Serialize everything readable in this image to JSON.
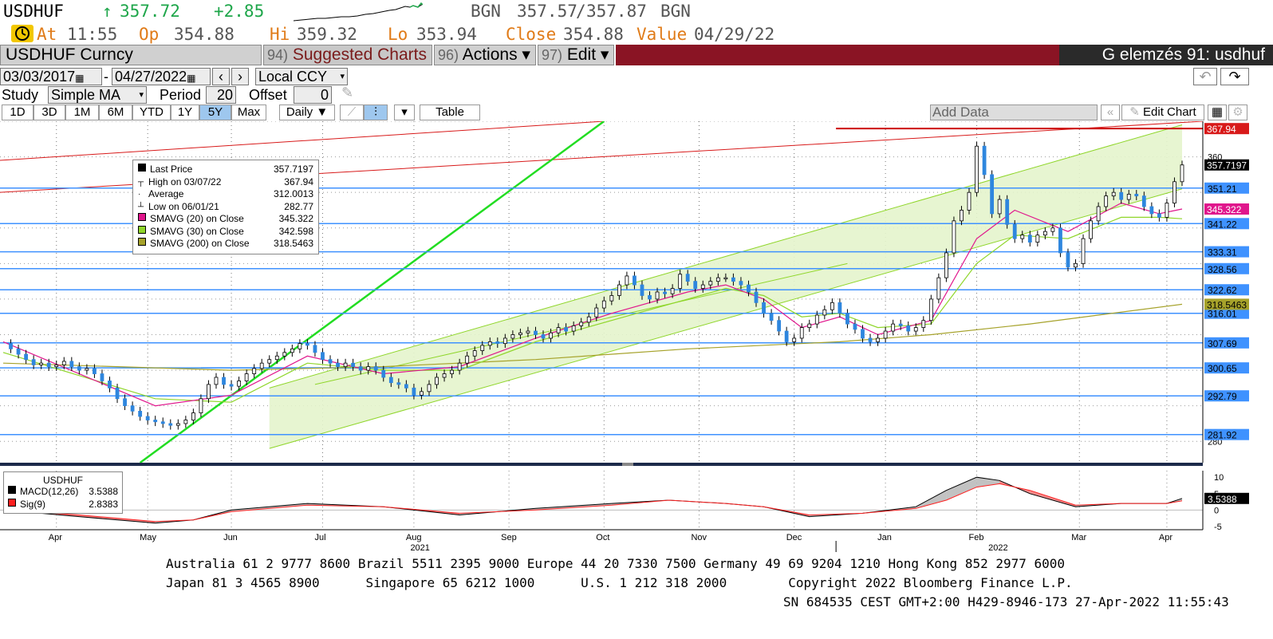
{
  "quote": {
    "ticker": "USDHUF",
    "arrow": "↑",
    "last": "357.72",
    "change": "+2.85",
    "source": "BGN",
    "bid": "357.57",
    "sep": "/",
    "ask": "357.87",
    "source2": "BGN",
    "at_label": "At",
    "time": "11:55",
    "open_label": "Op",
    "open": "354.88",
    "high_label": "Hi",
    "high": "359.32",
    "low_label": "Lo",
    "low": "353.94",
    "close_label": "Close",
    "close": "354.88",
    "value_label": "Value",
    "value_date": "04/29/22"
  },
  "menubar": {
    "security": "USDHUF Curncy",
    "suggested_num": "94)",
    "suggested": "Suggested Charts",
    "actions_num": "96)",
    "actions": "Actions ▾",
    "edit_num": "97)",
    "edit": "Edit ▾",
    "page_title": "G elemzés 91: usdhuf"
  },
  "controls": {
    "start_date": "03/03/2017",
    "dash": "-",
    "end_date": "04/27/2022",
    "currency": "Local CCY",
    "study_label": "Study",
    "study_value": "Simple MA",
    "period_label": "Period",
    "period_value": "20",
    "offset_label": "Offset",
    "offset_value": "0",
    "periods": [
      "1D",
      "3D",
      "1M",
      "6M",
      "YTD",
      "1Y",
      "5Y",
      "Max"
    ],
    "selected_period": "5Y",
    "frequency": "Daily ▼",
    "table": "Table",
    "add_data": "Add Data",
    "edit_chart": "Edit Chart"
  },
  "legend": {
    "rows": [
      {
        "label": "Last Price",
        "value": "357.7197",
        "color": "#000000",
        "marker": "box"
      },
      {
        "label": "High on 03/07/22",
        "value": "367.94",
        "color": "#000000",
        "marker": "high"
      },
      {
        "label": "Average",
        "value": "312.0013",
        "color": "#000000",
        "marker": "avg"
      },
      {
        "label": "Low on 06/01/21",
        "value": "282.77",
        "color": "#000000",
        "marker": "low"
      },
      {
        "label": "SMAVG (20)  on Close",
        "value": "345.322",
        "color": "#e0168c",
        "marker": "box"
      },
      {
        "label": "SMAVG (30)  on Close",
        "value": "342.598",
        "color": "#8fd62a",
        "marker": "box"
      },
      {
        "label": "SMAVG (200)  on Close",
        "value": "318.5463",
        "color": "#a6a22a",
        "marker": "box"
      }
    ]
  },
  "macd_legend": {
    "title": "USDHUF",
    "rows": [
      {
        "label": "MACD(12,26)",
        "value": "3.5388",
        "color": "#000000"
      },
      {
        "label": "Sig(9)",
        "value": "2.8383",
        "color": "#ff2020"
      }
    ]
  },
  "chart_data": {
    "type": "candlestick",
    "title": "USDHUF Curncy",
    "x_ticks": [
      "Apr",
      "May",
      "Jun",
      "Jul",
      "Aug",
      "Sep",
      "Oct",
      "Nov",
      "Dec",
      "Jan",
      "Feb",
      "Mar",
      "Apr"
    ],
    "year_labels": [
      "2021",
      "2022"
    ],
    "y_tick_labels": [
      "360",
      "280"
    ],
    "ylim": [
      274,
      370
    ],
    "price_series": {
      "name": "Last Price",
      "points": [
        [
          0,
          307.5
        ],
        [
          2,
          306
        ],
        [
          4,
          304.5
        ],
        [
          6,
          303
        ],
        [
          8,
          301.5
        ],
        [
          10,
          302
        ],
        [
          12,
          301
        ],
        [
          14,
          301.5
        ],
        [
          16,
          302.5
        ],
        [
          18,
          301
        ],
        [
          20,
          300
        ],
        [
          22,
          300.5
        ],
        [
          24,
          299
        ],
        [
          26,
          297
        ],
        [
          28,
          295
        ],
        [
          30,
          292
        ],
        [
          32,
          290
        ],
        [
          34,
          288.5
        ],
        [
          36,
          287
        ],
        [
          38,
          286
        ],
        [
          40,
          285.5
        ],
        [
          42,
          285
        ],
        [
          44,
          284.5
        ],
        [
          46,
          285
        ],
        [
          48,
          286
        ],
        [
          50,
          288
        ],
        [
          52,
          292
        ],
        [
          54,
          296
        ],
        [
          56,
          298
        ],
        [
          58,
          296
        ],
        [
          60,
          295.5
        ],
        [
          62,
          297
        ],
        [
          64,
          299
        ],
        [
          66,
          300.5
        ],
        [
          68,
          302
        ],
        [
          70,
          303
        ],
        [
          72,
          304
        ],
        [
          74,
          305
        ],
        [
          76,
          306
        ],
        [
          78,
          307.5
        ],
        [
          80,
          307
        ],
        [
          82,
          305
        ],
        [
          84,
          303
        ],
        [
          86,
          302
        ],
        [
          88,
          301
        ],
        [
          90,
          302
        ],
        [
          92,
          301
        ],
        [
          94,
          300
        ],
        [
          96,
          301
        ],
        [
          98,
          300
        ],
        [
          100,
          298
        ],
        [
          102,
          296.5
        ],
        [
          104,
          296
        ],
        [
          106,
          295
        ],
        [
          108,
          293
        ],
        [
          110,
          294
        ],
        [
          112,
          296
        ],
        [
          114,
          298
        ],
        [
          116,
          299
        ],
        [
          118,
          300
        ],
        [
          120,
          302
        ],
        [
          122,
          304
        ],
        [
          124,
          305.5
        ],
        [
          126,
          307
        ],
        [
          128,
          308
        ],
        [
          130,
          307.5
        ],
        [
          132,
          309
        ],
        [
          134,
          310
        ],
        [
          136,
          310.5
        ],
        [
          138,
          311
        ],
        [
          140,
          310
        ],
        [
          142,
          309
        ],
        [
          144,
          310.5
        ],
        [
          146,
          312
        ],
        [
          148,
          311
        ],
        [
          150,
          312.5
        ],
        [
          152,
          313.5
        ],
        [
          154,
          315
        ],
        [
          156,
          317.5
        ],
        [
          158,
          319.5
        ],
        [
          160,
          321
        ],
        [
          162,
          324
        ],
        [
          164,
          326.5
        ],
        [
          166,
          324
        ],
        [
          168,
          321
        ],
        [
          170,
          320
        ],
        [
          172,
          322
        ],
        [
          174,
          321.5
        ],
        [
          176,
          323
        ],
        [
          178,
          327
        ],
        [
          180,
          325
        ],
        [
          182,
          323
        ],
        [
          184,
          324
        ],
        [
          186,
          325
        ],
        [
          188,
          326
        ],
        [
          190,
          326
        ],
        [
          192,
          325
        ],
        [
          194,
          324
        ],
        [
          196,
          322
        ],
        [
          198,
          319
        ],
        [
          200,
          316
        ],
        [
          202,
          314
        ],
        [
          204,
          311
        ],
        [
          206,
          308
        ],
        [
          208,
          309
        ],
        [
          210,
          312
        ],
        [
          212,
          313
        ],
        [
          214,
          315.5
        ],
        [
          216,
          317
        ],
        [
          218,
          319
        ],
        [
          220,
          316
        ],
        [
          222,
          313
        ],
        [
          224,
          311.5
        ],
        [
          226,
          309
        ],
        [
          228,
          308
        ],
        [
          230,
          309
        ],
        [
          232,
          311
        ],
        [
          234,
          313
        ],
        [
          236,
          312.5
        ],
        [
          238,
          311
        ],
        [
          240,
          312
        ],
        [
          242,
          314
        ],
        [
          244,
          320
        ],
        [
          246,
          326
        ],
        [
          248,
          333
        ],
        [
          250,
          342
        ],
        [
          252,
          345
        ],
        [
          254,
          350
        ],
        [
          256,
          363
        ],
        [
          258,
          355
        ],
        [
          260,
          344
        ],
        [
          262,
          348
        ],
        [
          264,
          341
        ],
        [
          266,
          337
        ],
        [
          268,
          338
        ],
        [
          270,
          336
        ],
        [
          272,
          338
        ],
        [
          274,
          339
        ],
        [
          276,
          340
        ],
        [
          278,
          333
        ],
        [
          280,
          329
        ],
        [
          282,
          330
        ],
        [
          284,
          337
        ],
        [
          286,
          342
        ],
        [
          288,
          346
        ],
        [
          290,
          349
        ],
        [
          292,
          350
        ],
        [
          294,
          348
        ],
        [
          296,
          349.5
        ],
        [
          298,
          349
        ],
        [
          300,
          346
        ],
        [
          302,
          344
        ],
        [
          304,
          343
        ],
        [
          306,
          347
        ],
        [
          308,
          353
        ],
        [
          310,
          357.72
        ]
      ]
    },
    "sma20": [
      [
        0,
        308
      ],
      [
        40,
        290
      ],
      [
        60,
        293
      ],
      [
        80,
        304
      ],
      [
        100,
        299
      ],
      [
        120,
        301
      ],
      [
        140,
        309
      ],
      [
        160,
        316
      ],
      [
        180,
        322
      ],
      [
        190,
        324
      ],
      [
        200,
        320
      ],
      [
        210,
        312
      ],
      [
        220,
        315
      ],
      [
        230,
        310
      ],
      [
        244,
        314
      ],
      [
        256,
        337
      ],
      [
        266,
        345
      ],
      [
        280,
        339
      ],
      [
        294,
        347
      ],
      [
        304,
        344
      ],
      [
        310,
        345.322
      ]
    ],
    "sma30": [
      [
        0,
        305
      ],
      [
        40,
        292
      ],
      [
        60,
        291
      ],
      [
        80,
        302
      ],
      [
        100,
        300
      ],
      [
        120,
        300
      ],
      [
        140,
        308
      ],
      [
        160,
        314
      ],
      [
        180,
        320
      ],
      [
        190,
        323
      ],
      [
        200,
        321
      ],
      [
        210,
        315
      ],
      [
        220,
        316
      ],
      [
        230,
        312
      ],
      [
        244,
        313
      ],
      [
        256,
        330
      ],
      [
        266,
        338
      ],
      [
        280,
        337
      ],
      [
        294,
        343
      ],
      [
        304,
        343
      ],
      [
        310,
        342.598
      ]
    ],
    "sma200": [
      [
        0,
        302
      ],
      [
        60,
        300
      ],
      [
        100,
        301
      ],
      [
        140,
        303
      ],
      [
        180,
        306
      ],
      [
        220,
        308
      ],
      [
        244,
        310
      ],
      [
        270,
        313
      ],
      [
        310,
        318.5463
      ]
    ],
    "hlines": [
      {
        "value": "351.21",
        "color": "#3f92ff"
      },
      {
        "value": "341.22",
        "color": "#3f92ff"
      },
      {
        "value": "333.31",
        "color": "#3f92ff"
      },
      {
        "value": "328.56",
        "color": "#3f92ff"
      },
      {
        "value": "322.62",
        "color": "#3f92ff"
      },
      {
        "value": "316.01",
        "color": "#3f92ff"
      },
      {
        "value": "307.69",
        "color": "#3f92ff"
      },
      {
        "value": "300.65",
        "color": "#3f92ff"
      },
      {
        "value": "292.79",
        "color": "#3f92ff"
      },
      {
        "value": "281.92",
        "color": "#3f92ff"
      }
    ],
    "right_tags": [
      {
        "value": "367.94",
        "bg": "#d81a1a",
        "fg": "#ffffff"
      },
      {
        "value": "357.7197",
        "bg": "#000000",
        "fg": "#ffffff"
      },
      {
        "value": "345.322",
        "bg": "#e0168c",
        "fg": "#ffffff"
      },
      {
        "value": "318.5463",
        "bg": "#a6a22a",
        "fg": "#000000"
      }
    ],
    "macd": {
      "ylim": [
        -6,
        12
      ],
      "y_ticks": [
        "10",
        "5",
        "0",
        "-5"
      ],
      "last_tag": "3.5388",
      "macd_points": [
        [
          0,
          0
        ],
        [
          20,
          -2
        ],
        [
          40,
          -4
        ],
        [
          50,
          -3
        ],
        [
          60,
          0
        ],
        [
          80,
          2
        ],
        [
          100,
          1
        ],
        [
          120,
          -1.5
        ],
        [
          140,
          0.5
        ],
        [
          160,
          2
        ],
        [
          175,
          3
        ],
        [
          190,
          2
        ],
        [
          200,
          1
        ],
        [
          212,
          -2
        ],
        [
          226,
          -1
        ],
        [
          240,
          1
        ],
        [
          248,
          6
        ],
        [
          256,
          10
        ],
        [
          262,
          9
        ],
        [
          270,
          5
        ],
        [
          282,
          1
        ],
        [
          294,
          2
        ],
        [
          306,
          2
        ],
        [
          310,
          3.5388
        ]
      ],
      "sig_points": [
        [
          0,
          0
        ],
        [
          20,
          -1.5
        ],
        [
          40,
          -3.5
        ],
        [
          50,
          -3
        ],
        [
          60,
          -0.5
        ],
        [
          80,
          1.5
        ],
        [
          100,
          1
        ],
        [
          120,
          -1
        ],
        [
          140,
          0
        ],
        [
          160,
          1.5
        ],
        [
          175,
          3
        ],
        [
          190,
          2
        ],
        [
          200,
          1
        ],
        [
          212,
          -1.5
        ],
        [
          226,
          -1
        ],
        [
          240,
          0.5
        ],
        [
          248,
          3
        ],
        [
          256,
          7
        ],
        [
          262,
          8
        ],
        [
          270,
          6
        ],
        [
          282,
          1.5
        ],
        [
          294,
          2
        ],
        [
          306,
          2
        ],
        [
          310,
          2.8383
        ]
      ]
    }
  },
  "footer": {
    "line1": "Australia 61 2 9777 8600 Brazil 5511 2395 9000 Europe 44 20 7330 7500 Germany 49 69 9204 1210 Hong Kong 852 2977 6000",
    "line2": "Japan 81 3 4565 8900      Singapore 65 6212 1000      U.S. 1 212 318 2000        Copyright 2022 Bloomberg Finance L.P.",
    "line3": "SN 684535 CEST GMT+2:00 H429-8946-173 27-Apr-2022 11:55:43"
  }
}
